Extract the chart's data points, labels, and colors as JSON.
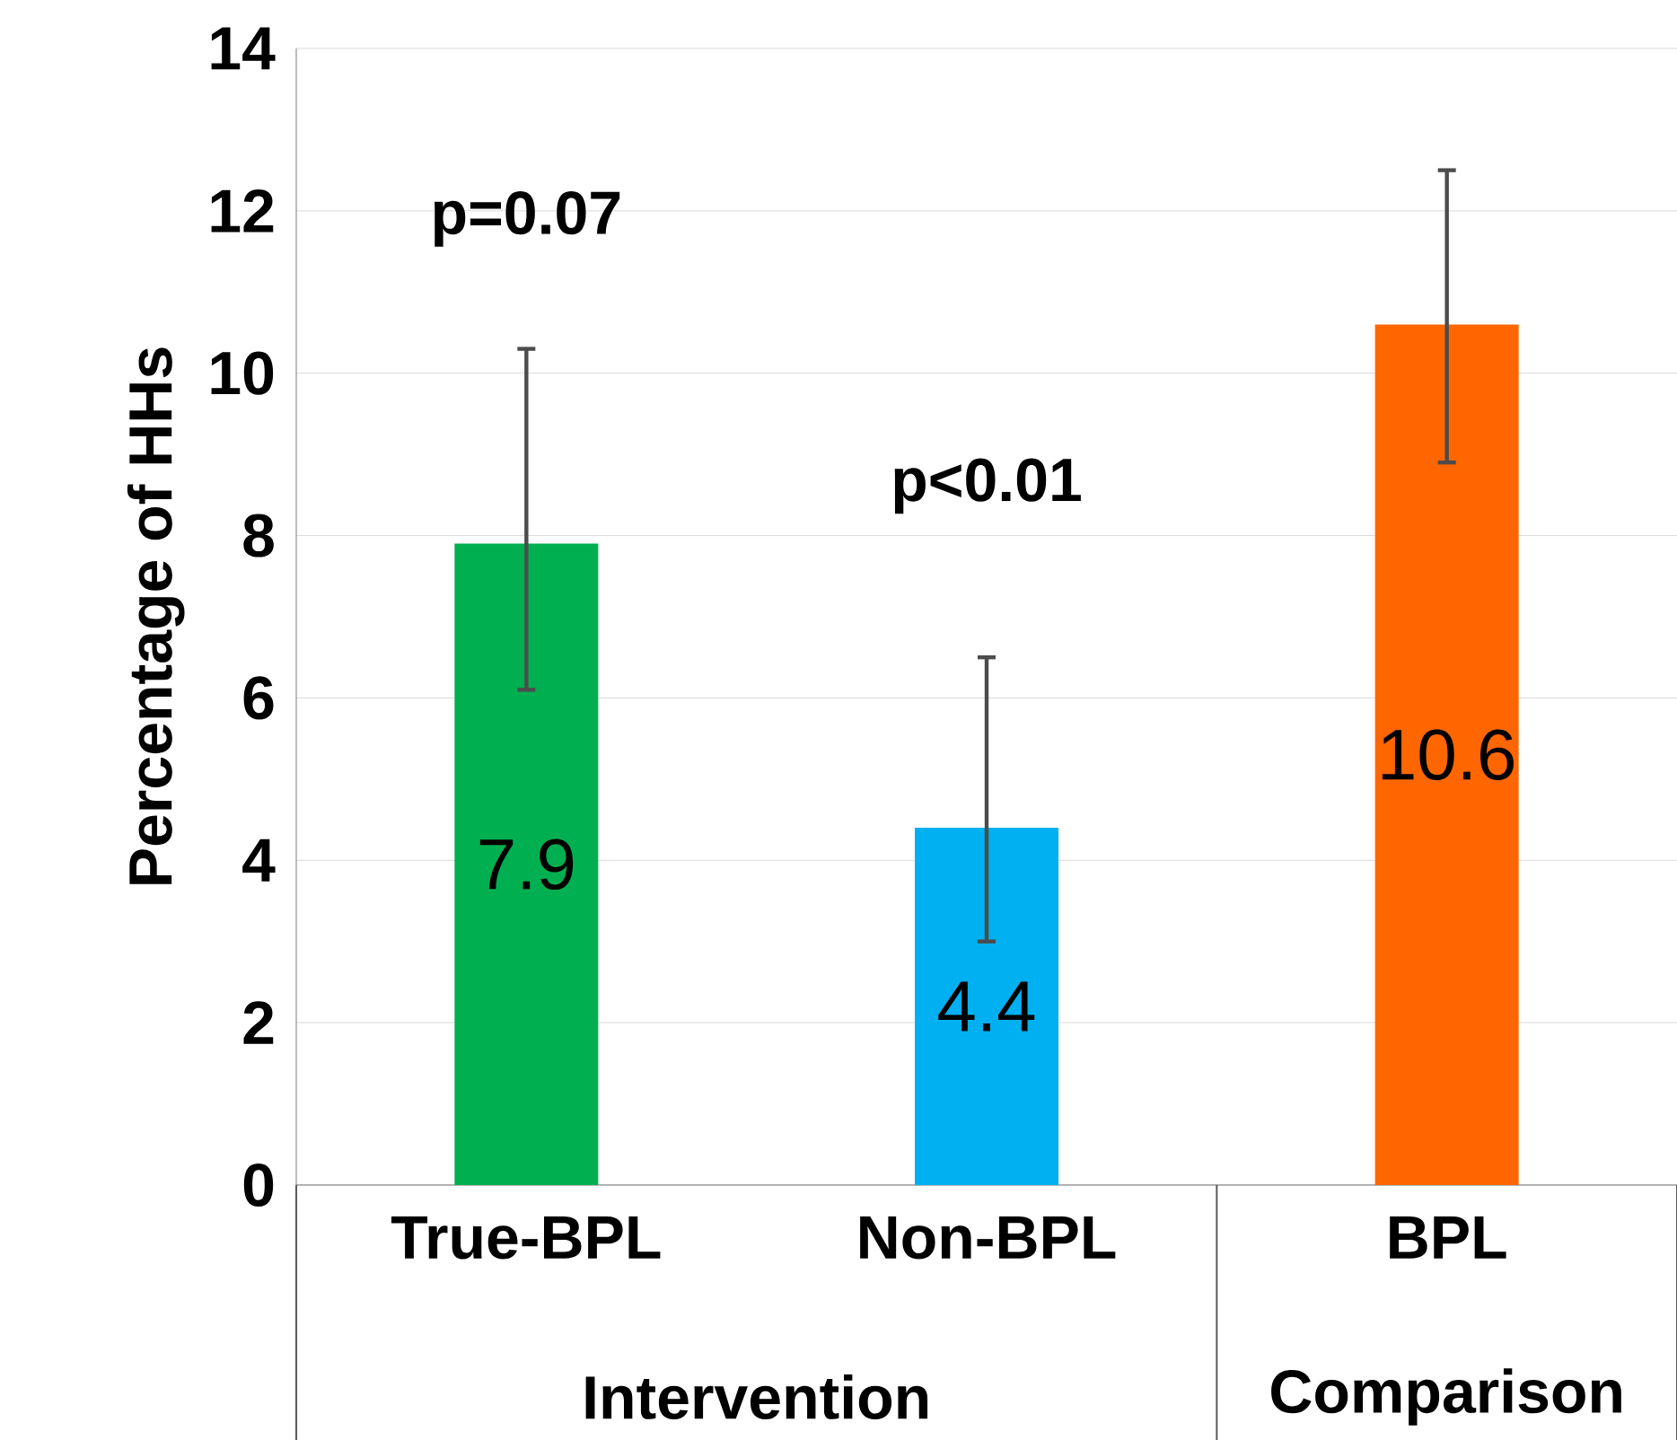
{
  "chart_data": {
    "type": "bar",
    "ylabel": "Percentage of HHs",
    "categories": [
      "True-BPL",
      "Non-BPL",
      "BPL"
    ],
    "values": [
      7.9,
      4.4,
      10.6
    ],
    "colors": [
      "#00b050",
      "#00b0f0",
      "#ff6600"
    ],
    "errors": [
      [
        6.1,
        10.3
      ],
      [
        3.0,
        6.5
      ],
      [
        8.9,
        12.5
      ]
    ],
    "data_labels": true,
    "annotations": [
      "p=0.07",
      "p<0.01",
      "Intervention",
      "Comparison"
    ],
    "ylim": [
      0,
      14
    ],
    "yticks": [
      0,
      2,
      4,
      6,
      8,
      10,
      12,
      14
    ],
    "grid": "y"
  }
}
